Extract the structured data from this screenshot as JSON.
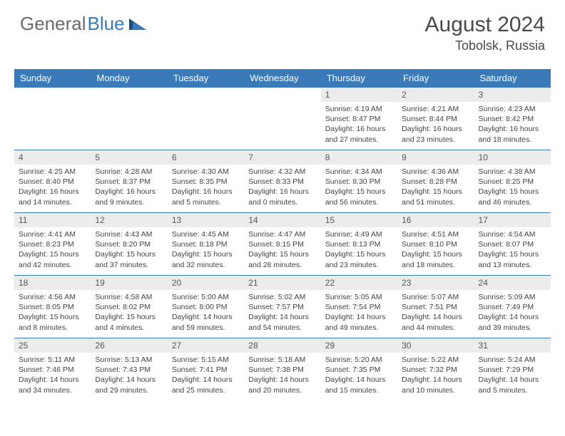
{
  "brand": {
    "part1": "General",
    "part2": "Blue",
    "icon_color": "#3a7ab8"
  },
  "title": "August 2024",
  "location": "Tobolsk, Russia",
  "header_bg": "#3a7ab8",
  "daynum_bg": "#ececec",
  "border_color": "#3a7ab8",
  "weekdays": [
    "Sunday",
    "Monday",
    "Tuesday",
    "Wednesday",
    "Thursday",
    "Friday",
    "Saturday"
  ],
  "weeks": [
    [
      {
        "empty": true
      },
      {
        "empty": true
      },
      {
        "empty": true
      },
      {
        "empty": true
      },
      {
        "num": "1",
        "sunrise": "4:19 AM",
        "sunset": "8:47 PM",
        "daylight": "16 hours and 27 minutes."
      },
      {
        "num": "2",
        "sunrise": "4:21 AM",
        "sunset": "8:44 PM",
        "daylight": "16 hours and 23 minutes."
      },
      {
        "num": "3",
        "sunrise": "4:23 AM",
        "sunset": "8:42 PM",
        "daylight": "16 hours and 18 minutes."
      }
    ],
    [
      {
        "num": "4",
        "sunrise": "4:25 AM",
        "sunset": "8:40 PM",
        "daylight": "16 hours and 14 minutes."
      },
      {
        "num": "5",
        "sunrise": "4:28 AM",
        "sunset": "8:37 PM",
        "daylight": "16 hours and 9 minutes."
      },
      {
        "num": "6",
        "sunrise": "4:30 AM",
        "sunset": "8:35 PM",
        "daylight": "16 hours and 5 minutes."
      },
      {
        "num": "7",
        "sunrise": "4:32 AM",
        "sunset": "8:33 PM",
        "daylight": "16 hours and 0 minutes."
      },
      {
        "num": "8",
        "sunrise": "4:34 AM",
        "sunset": "8:30 PM",
        "daylight": "15 hours and 56 minutes."
      },
      {
        "num": "9",
        "sunrise": "4:36 AM",
        "sunset": "8:28 PM",
        "daylight": "15 hours and 51 minutes."
      },
      {
        "num": "10",
        "sunrise": "4:38 AM",
        "sunset": "8:25 PM",
        "daylight": "15 hours and 46 minutes."
      }
    ],
    [
      {
        "num": "11",
        "sunrise": "4:41 AM",
        "sunset": "8:23 PM",
        "daylight": "15 hours and 42 minutes."
      },
      {
        "num": "12",
        "sunrise": "4:43 AM",
        "sunset": "8:20 PM",
        "daylight": "15 hours and 37 minutes."
      },
      {
        "num": "13",
        "sunrise": "4:45 AM",
        "sunset": "8:18 PM",
        "daylight": "15 hours and 32 minutes."
      },
      {
        "num": "14",
        "sunrise": "4:47 AM",
        "sunset": "8:15 PM",
        "daylight": "15 hours and 28 minutes."
      },
      {
        "num": "15",
        "sunrise": "4:49 AM",
        "sunset": "8:13 PM",
        "daylight": "15 hours and 23 minutes."
      },
      {
        "num": "16",
        "sunrise": "4:51 AM",
        "sunset": "8:10 PM",
        "daylight": "15 hours and 18 minutes."
      },
      {
        "num": "17",
        "sunrise": "4:54 AM",
        "sunset": "8:07 PM",
        "daylight": "15 hours and 13 minutes."
      }
    ],
    [
      {
        "num": "18",
        "sunrise": "4:56 AM",
        "sunset": "8:05 PM",
        "daylight": "15 hours and 8 minutes."
      },
      {
        "num": "19",
        "sunrise": "4:58 AM",
        "sunset": "8:02 PM",
        "daylight": "15 hours and 4 minutes."
      },
      {
        "num": "20",
        "sunrise": "5:00 AM",
        "sunset": "8:00 PM",
        "daylight": "14 hours and 59 minutes."
      },
      {
        "num": "21",
        "sunrise": "5:02 AM",
        "sunset": "7:57 PM",
        "daylight": "14 hours and 54 minutes."
      },
      {
        "num": "22",
        "sunrise": "5:05 AM",
        "sunset": "7:54 PM",
        "daylight": "14 hours and 49 minutes."
      },
      {
        "num": "23",
        "sunrise": "5:07 AM",
        "sunset": "7:51 PM",
        "daylight": "14 hours and 44 minutes."
      },
      {
        "num": "24",
        "sunrise": "5:09 AM",
        "sunset": "7:49 PM",
        "daylight": "14 hours and 39 minutes."
      }
    ],
    [
      {
        "num": "25",
        "sunrise": "5:11 AM",
        "sunset": "7:46 PM",
        "daylight": "14 hours and 34 minutes."
      },
      {
        "num": "26",
        "sunrise": "5:13 AM",
        "sunset": "7:43 PM",
        "daylight": "14 hours and 29 minutes."
      },
      {
        "num": "27",
        "sunrise": "5:15 AM",
        "sunset": "7:41 PM",
        "daylight": "14 hours and 25 minutes."
      },
      {
        "num": "28",
        "sunrise": "5:18 AM",
        "sunset": "7:38 PM",
        "daylight": "14 hours and 20 minutes."
      },
      {
        "num": "29",
        "sunrise": "5:20 AM",
        "sunset": "7:35 PM",
        "daylight": "14 hours and 15 minutes."
      },
      {
        "num": "30",
        "sunrise": "5:22 AM",
        "sunset": "7:32 PM",
        "daylight": "14 hours and 10 minutes."
      },
      {
        "num": "31",
        "sunrise": "5:24 AM",
        "sunset": "7:29 PM",
        "daylight": "14 hours and 5 minutes."
      }
    ]
  ]
}
